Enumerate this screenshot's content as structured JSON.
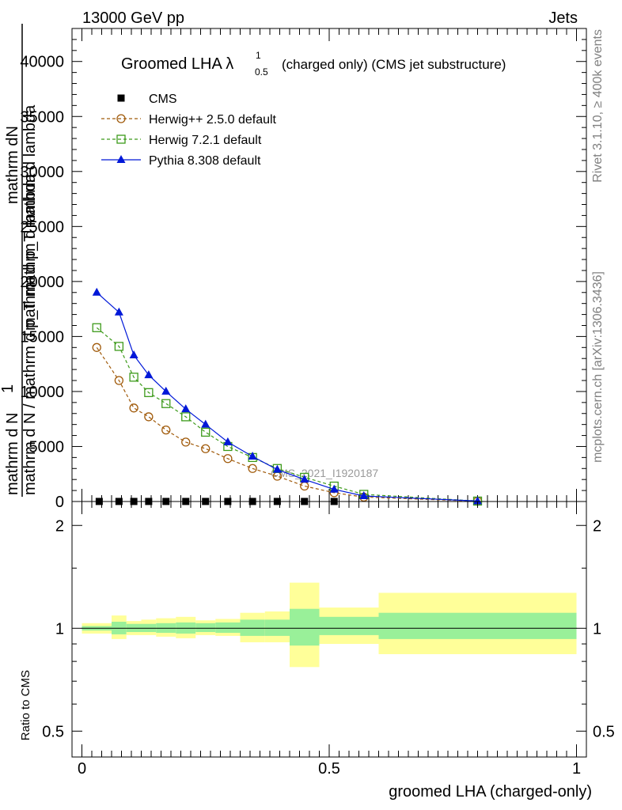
{
  "header": {
    "left": "13000 GeV pp",
    "right": "Jets"
  },
  "side": {
    "top": "Rivet 3.1.10, ≥ 400k events",
    "bottom": "mcplots.cern.ch [arXiv:1306.3436]"
  },
  "watermark": "CMS_2021_I1920187",
  "chart_data": [
    {
      "type": "line",
      "title": "Groomed LHA λ",
      "title_sup": "1",
      "title_sub": "0.5",
      "subtitle": "(charged only) (CMS jet substructure)",
      "ylabel_numerator": "mathrm dN",
      "ylabel_numerator2": "mathrm d p_T mathrm d lambda",
      "ylabel_prefix": "1",
      "ylabel_denominator": "mathrm d N / mathrm d p_T mathrm d lambda",
      "ylabel_denominator2": "mathrm d N",
      "xlabel": "groomed LHA (charged-only)",
      "xlim": [
        -0.02,
        1.02
      ],
      "ylim": [
        0,
        43000
      ],
      "yticks": [
        0,
        5000,
        10000,
        15000,
        20000,
        25000,
        30000,
        35000,
        40000
      ],
      "ytick_labels": [
        "0",
        "5000",
        "10000",
        "15000",
        "20000",
        "25000",
        "30000",
        "35000",
        "40000"
      ],
      "legend_position": "top-left",
      "series": [
        {
          "name": "CMS",
          "color": "#000000",
          "marker": "square-filled",
          "dashed": false,
          "line": false,
          "x": [
            0.035,
            0.075,
            0.105,
            0.135,
            0.17,
            0.21,
            0.25,
            0.295,
            0.345,
            0.395,
            0.45,
            0.51
          ],
          "y": [
            5,
            5,
            5,
            5,
            5,
            5,
            5,
            5,
            5,
            5,
            5,
            5
          ]
        },
        {
          "name": "Herwig++ 2.5.0 default",
          "color": "#a05a0a",
          "marker": "circle-open",
          "dashed": true,
          "line": true,
          "x": [
            0.03,
            0.075,
            0.105,
            0.135,
            0.17,
            0.21,
            0.25,
            0.295,
            0.345,
            0.395,
            0.45,
            0.51,
            0.57,
            0.8
          ],
          "y": [
            14000,
            11000,
            8500,
            7700,
            6500,
            5400,
            4800,
            3900,
            3000,
            2300,
            1400,
            800,
            400,
            30
          ]
        },
        {
          "name": "Herwig 7.2.1 default",
          "color": "#3c9a1a",
          "marker": "square-open",
          "dashed": true,
          "line": true,
          "x": [
            0.03,
            0.075,
            0.105,
            0.135,
            0.17,
            0.21,
            0.25,
            0.295,
            0.345,
            0.395,
            0.45,
            0.51,
            0.57,
            0.8
          ],
          "y": [
            15800,
            14100,
            11300,
            9900,
            8900,
            7700,
            6300,
            5000,
            4000,
            3000,
            2200,
            1400,
            650,
            40
          ]
        },
        {
          "name": "Pythia 8.308 default",
          "color": "#0018d8",
          "marker": "triangle-filled",
          "dashed": false,
          "line": true,
          "x": [
            0.03,
            0.075,
            0.105,
            0.135,
            0.17,
            0.21,
            0.25,
            0.295,
            0.345,
            0.395,
            0.45,
            0.51,
            0.57,
            0.8
          ],
          "y": [
            19000,
            17200,
            13300,
            11500,
            10000,
            8400,
            7000,
            5400,
            4100,
            2900,
            2000,
            1100,
            500,
            40
          ]
        }
      ]
    },
    {
      "type": "area",
      "ylabel": "Ratio to CMS",
      "xlabel": "groomed LHA (charged-only)",
      "xlim": [
        -0.02,
        1.02
      ],
      "ylim": [
        0.42,
        2.35
      ],
      "log_y": true,
      "yticks": [
        0.5,
        1,
        2
      ],
      "ytick_labels": [
        "0.5",
        "1",
        "2"
      ],
      "xticks": [
        0,
        0.5,
        1
      ],
      "xtick_labels": [
        "0",
        "0.5",
        "1"
      ],
      "reference": 1.0,
      "bins": [
        {
          "lo": 0.0,
          "hi": 0.06,
          "stat_lo": 0.985,
          "stat_hi": 1.015,
          "tot_lo": 0.965,
          "tot_hi": 1.035
        },
        {
          "lo": 0.06,
          "hi": 0.09,
          "stat_lo": 0.96,
          "stat_hi": 1.045,
          "tot_lo": 0.93,
          "tot_hi": 1.09
        },
        {
          "lo": 0.09,
          "hi": 0.12,
          "stat_lo": 0.975,
          "stat_hi": 1.03,
          "tot_lo": 0.955,
          "tot_hi": 1.05
        },
        {
          "lo": 0.12,
          "hi": 0.15,
          "stat_lo": 0.975,
          "stat_hi": 1.03,
          "tot_lo": 0.955,
          "tot_hi": 1.06
        },
        {
          "lo": 0.15,
          "hi": 0.19,
          "stat_lo": 0.97,
          "stat_hi": 1.035,
          "tot_lo": 0.945,
          "tot_hi": 1.07
        },
        {
          "lo": 0.19,
          "hi": 0.23,
          "stat_lo": 0.965,
          "stat_hi": 1.04,
          "tot_lo": 0.935,
          "tot_hi": 1.08
        },
        {
          "lo": 0.23,
          "hi": 0.27,
          "stat_lo": 0.975,
          "stat_hi": 1.035,
          "tot_lo": 0.955,
          "tot_hi": 1.055
        },
        {
          "lo": 0.27,
          "hi": 0.32,
          "stat_lo": 0.97,
          "stat_hi": 1.04,
          "tot_lo": 0.95,
          "tot_hi": 1.065
        },
        {
          "lo": 0.32,
          "hi": 0.37,
          "stat_lo": 0.95,
          "stat_hi": 1.06,
          "tot_lo": 0.91,
          "tot_hi": 1.11
        },
        {
          "lo": 0.37,
          "hi": 0.42,
          "stat_lo": 0.95,
          "stat_hi": 1.06,
          "tot_lo": 0.91,
          "tot_hi": 1.12
        },
        {
          "lo": 0.42,
          "hi": 0.48,
          "stat_lo": 0.89,
          "stat_hi": 1.14,
          "tot_lo": 0.77,
          "tot_hi": 1.36
        },
        {
          "lo": 0.48,
          "hi": 0.6,
          "stat_lo": 0.955,
          "stat_hi": 1.08,
          "tot_lo": 0.9,
          "tot_hi": 1.15
        },
        {
          "lo": 0.6,
          "hi": 1.0,
          "stat_lo": 0.93,
          "stat_hi": 1.11,
          "tot_lo": 0.84,
          "tot_hi": 1.27
        }
      ]
    }
  ]
}
